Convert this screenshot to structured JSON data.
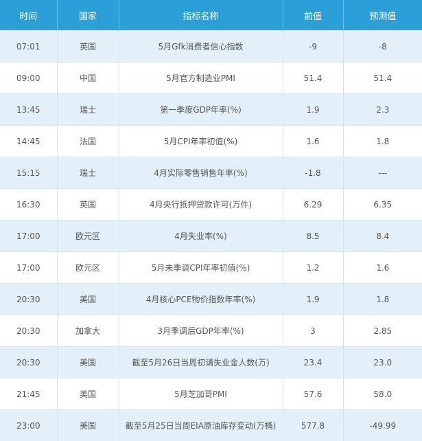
{
  "table": {
    "header": [
      "时间",
      "国家",
      "指标名称",
      "前值",
      "预测值"
    ],
    "rows": [
      [
        "07:01",
        "英国",
        "5月Gfk消费者信心指数",
        "-9",
        "-8"
      ],
      [
        "09:00",
        "中国",
        "5月官方制造业PMI",
        "51.4",
        "51.4"
      ],
      [
        "13:45",
        "瑞士",
        "第一季度GDP年率(%)",
        "1.9",
        "2.3"
      ],
      [
        "14:45",
        "法国",
        "5月CPI年率初值(%)",
        "1.6",
        "1.8"
      ],
      [
        "15:15",
        "瑞士",
        "4月实际零售销售年率(%)",
        "-1.8",
        "---"
      ],
      [
        "16:30",
        "英国",
        "4月央行抵押贷款许可(万件)",
        "6.29",
        "6.35"
      ],
      [
        "17:00",
        "欧元区",
        "4月失业率(%)",
        "8.5",
        "8.4"
      ],
      [
        "17:00",
        "欧元区",
        "5月未季调CPI年率初值(%)",
        "1.2",
        "1.6"
      ],
      [
        "20:30",
        "美国",
        "4月核心PCE物价指数年率(%)",
        "1.9",
        "1.8"
      ],
      [
        "20:30",
        "加拿大",
        "3月季调后GDP年率(%)",
        "3",
        "2.85"
      ],
      [
        "20:30",
        "美国",
        "截至5月26日当周初请失业金人数(万)",
        "23.4",
        "23.0"
      ],
      [
        "21:45",
        "美国",
        "5月芝加哥PMI",
        "57.6",
        "58.0"
      ],
      [
        "23:00",
        "美国",
        "截至5月25日当周EIA原油库存变动(万桶)",
        "577.8",
        "-49.99"
      ]
    ]
  }
}
